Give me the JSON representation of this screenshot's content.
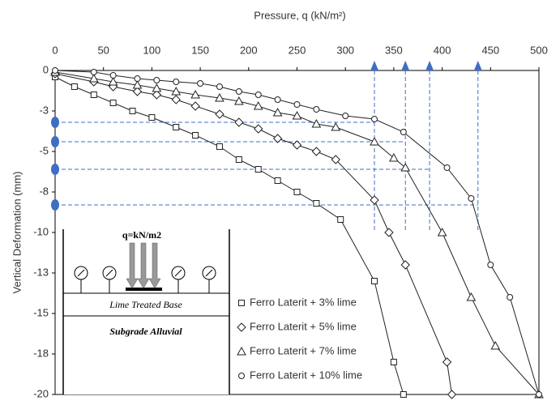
{
  "chart_data": {
    "type": "scatter",
    "title": "Pressure, q (kN/m²)",
    "y_label": "Vertical Deformation (mm)",
    "xlim": [
      0,
      500
    ],
    "xticks": [
      0,
      50,
      100,
      150,
      200,
      250,
      300,
      350,
      400,
      450,
      500
    ],
    "ylim": [
      -20,
      0
    ],
    "yticks": [
      0,
      {
        "value": -2.5,
        "label": "-3"
      },
      -5,
      {
        "value": -7.5,
        "label": "-8"
      },
      -10,
      {
        "value": -12.5,
        "label": "-13"
      },
      -15,
      {
        "value": -17.5,
        "label": "-18"
      },
      -20
    ],
    "legend": "lower right",
    "series": [
      {
        "name": "Ferro Laterit + 3% lime",
        "marker": "square",
        "color": "#222222",
        "x": [
          0,
          20,
          40,
          60,
          80,
          100,
          125,
          145,
          170,
          190,
          210,
          230,
          250,
          270,
          295,
          330,
          350,
          360
        ],
        "values": [
          -0.4,
          -1.0,
          -1.5,
          -2.0,
          -2.5,
          -2.9,
          -3.5,
          -4.0,
          -4.7,
          -5.5,
          -6.1,
          -6.8,
          -7.5,
          -8.2,
          -9.2,
          -13.0,
          -18.0,
          -20
        ]
      },
      {
        "name": "Ferro Laterit + 5% lime",
        "marker": "diamond",
        "color": "#222222",
        "x": [
          0,
          40,
          60,
          85,
          105,
          125,
          145,
          170,
          190,
          210,
          230,
          250,
          270,
          290,
          330,
          345,
          362,
          405,
          410
        ],
        "values": [
          -0.2,
          -0.7,
          -1.0,
          -1.3,
          -1.5,
          -1.8,
          -2.2,
          -2.7,
          -3.2,
          -3.6,
          -4.2,
          -4.6,
          -5.0,
          -5.5,
          -8.0,
          -10.0,
          -12.0,
          -18.0,
          -20
        ]
      },
      {
        "name": "Ferro Laterit + 7% lime",
        "marker": "triangle",
        "color": "#222222",
        "x": [
          0,
          40,
          60,
          85,
          105,
          125,
          145,
          170,
          190,
          210,
          230,
          250,
          270,
          290,
          330,
          350,
          362,
          400,
          430,
          455,
          500
        ],
        "values": [
          -0.1,
          -0.5,
          -0.7,
          -0.9,
          -1.1,
          -1.3,
          -1.5,
          -1.7,
          -1.9,
          -2.2,
          -2.6,
          -2.8,
          -3.3,
          -3.5,
          -4.4,
          -5.4,
          -6.0,
          -10.0,
          -14.0,
          -17.0,
          -20
        ]
      },
      {
        "name": "Ferro Laterit + 10% lime",
        "marker": "circle",
        "color": "#222222",
        "x": [
          0,
          40,
          60,
          85,
          105,
          125,
          150,
          170,
          190,
          210,
          230,
          250,
          270,
          300,
          330,
          360,
          405,
          430,
          450,
          470,
          500
        ],
        "values": [
          0,
          -0.1,
          -0.3,
          -0.5,
          -0.6,
          -0.7,
          -0.8,
          -1.0,
          -1.3,
          -1.5,
          -1.8,
          -2.1,
          -2.4,
          -2.8,
          -3.0,
          -3.8,
          -6.0,
          -7.9,
          -12.0,
          -14.0,
          -20
        ]
      }
    ],
    "pressure_markers": [
      330,
      362,
      387,
      437
    ],
    "deformation_markers": [
      -3.2,
      -4.4,
      -6.1,
      -8.3
    ],
    "marker_color": "#3f6fc4",
    "inset": {
      "load": "q=kN/m2",
      "layer1": "Lime Treated Base",
      "layer2": "Subgrade Alluvial"
    }
  }
}
